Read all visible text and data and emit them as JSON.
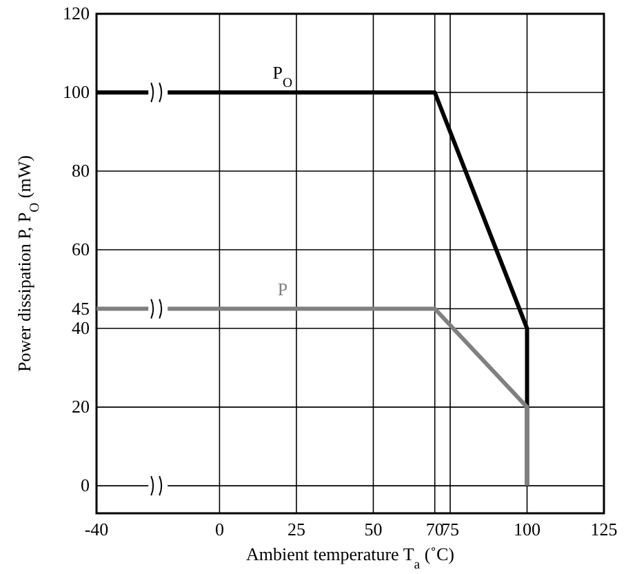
{
  "chart_data": {
    "type": "line",
    "xlabel": "Ambient temperature T$_{a}$ (˚C)",
    "ylabel": "Power dissipation P, P$_{O}$ (mW)",
    "xlim": [
      -40,
      125
    ],
    "ylim": [
      -7,
      120
    ],
    "xticks": [
      -40,
      0,
      25,
      50,
      70,
      75,
      100,
      125
    ],
    "yticks": [
      0,
      20,
      40,
      45,
      60,
      80,
      100,
      120
    ],
    "grid": true,
    "series": [
      {
        "name": "P$_{O}$",
        "color": "#000000",
        "x": [
          -40,
          70,
          100,
          100
        ],
        "values": [
          100,
          100,
          40,
          0
        ]
      },
      {
        "name": "P",
        "color": "#808080",
        "x": [
          -40,
          70,
          100,
          100
        ],
        "values": [
          45,
          45,
          20,
          0
        ]
      }
    ]
  }
}
